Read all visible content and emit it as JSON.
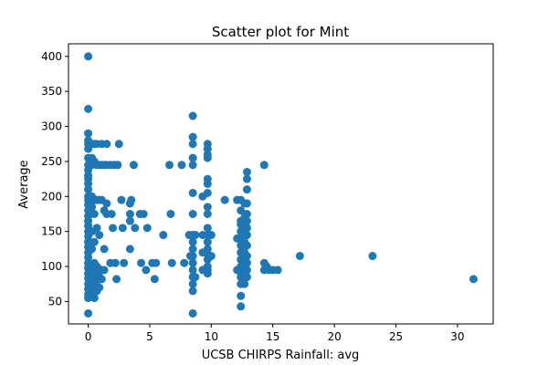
{
  "chart_data": {
    "type": "scatter",
    "title": "Scatter plot for Mint",
    "xlabel": "UCSB CHIRPS Rainfall: avg",
    "ylabel": "Average",
    "xlim": [
      -1.6,
      32.9
    ],
    "ylim": [
      18,
      418
    ],
    "xticks": [
      0,
      5,
      10,
      15,
      20,
      25,
      30
    ],
    "yticks": [
      50,
      100,
      150,
      200,
      250,
      300,
      350,
      400
    ],
    "grid": false,
    "marker_color": "#1f77b4",
    "series": [
      {
        "points": [
          [
            0,
            400
          ],
          [
            0,
            325
          ],
          [
            0,
            290
          ],
          [
            0,
            280
          ],
          [
            0,
            275
          ],
          [
            0,
            268
          ],
          [
            0,
            255
          ],
          [
            0,
            245
          ],
          [
            0,
            238
          ],
          [
            0,
            230
          ],
          [
            0,
            225
          ],
          [
            0,
            218
          ],
          [
            0,
            210
          ],
          [
            0,
            200
          ],
          [
            0,
            195
          ],
          [
            0,
            188
          ],
          [
            0,
            180
          ],
          [
            0,
            172
          ],
          [
            0,
            165
          ],
          [
            0,
            158
          ],
          [
            0,
            150
          ],
          [
            0,
            143
          ],
          [
            0,
            135
          ],
          [
            0,
            128
          ],
          [
            0,
            120
          ],
          [
            0,
            113
          ],
          [
            0,
            105
          ],
          [
            0,
            98
          ],
          [
            0,
            90
          ],
          [
            0,
            83
          ],
          [
            0,
            75
          ],
          [
            0,
            68
          ],
          [
            0,
            60
          ],
          [
            0,
            55
          ],
          [
            0,
            33
          ],
          [
            0.3,
            275
          ],
          [
            0.3,
            255
          ],
          [
            0.3,
            245
          ],
          [
            0.3,
            200
          ],
          [
            0.3,
            185
          ],
          [
            0.3,
            150
          ],
          [
            0.3,
            125
          ],
          [
            0.3,
            100
          ],
          [
            0.3,
            90
          ],
          [
            0.3,
            80
          ],
          [
            0.3,
            70
          ],
          [
            0.3,
            60
          ],
          [
            0.5,
            275
          ],
          [
            0.5,
            250
          ],
          [
            0.5,
            195
          ],
          [
            0.5,
            175
          ],
          [
            0.5,
            135
          ],
          [
            0.5,
            105
          ],
          [
            0.5,
            95
          ],
          [
            0.5,
            85
          ],
          [
            0.5,
            75
          ],
          [
            0.5,
            65
          ],
          [
            0.5,
            55
          ],
          [
            0.7,
            275
          ],
          [
            0.7,
            245
          ],
          [
            0.7,
            195
          ],
          [
            0.7,
            155
          ],
          [
            0.7,
            100
          ],
          [
            0.7,
            90
          ],
          [
            0.7,
            80
          ],
          [
            0.7,
            65
          ],
          [
            0.9,
            245
          ],
          [
            0.9,
            195
          ],
          [
            0.9,
            145
          ],
          [
            0.9,
            95
          ],
          [
            0.9,
            85
          ],
          [
            0.9,
            70
          ],
          [
            1.1,
            275
          ],
          [
            1.1,
            245
          ],
          [
            1.1,
            195
          ],
          [
            1.1,
            95
          ],
          [
            1.1,
            82
          ],
          [
            1.3,
            245
          ],
          [
            1.3,
            180
          ],
          [
            1.3,
            125
          ],
          [
            1.3,
            95
          ],
          [
            1.5,
            275
          ],
          [
            1.5,
            245
          ],
          [
            1.5,
            190
          ],
          [
            1.5,
            175
          ],
          [
            1.8,
            245
          ],
          [
            1.8,
            105
          ],
          [
            1.9,
            175
          ],
          [
            2.0,
            155
          ],
          [
            2.1,
            245
          ],
          [
            2.2,
            105
          ],
          [
            2.3,
            82
          ],
          [
            2.4,
            245
          ],
          [
            2.5,
            275
          ],
          [
            2.7,
            195
          ],
          [
            2.8,
            155
          ],
          [
            2.9,
            105
          ],
          [
            3.4,
            190
          ],
          [
            3.4,
            175
          ],
          [
            3.4,
            165
          ],
          [
            3.4,
            125
          ],
          [
            3.5,
            195
          ],
          [
            3.7,
            245
          ],
          [
            3.8,
            155
          ],
          [
            4.2,
            175
          ],
          [
            4.3,
            105
          ],
          [
            4.5,
            175
          ],
          [
            4.7,
            95
          ],
          [
            4.8,
            155
          ],
          [
            5.2,
            105
          ],
          [
            5.4,
            82
          ],
          [
            5.5,
            105
          ],
          [
            6.1,
            145
          ],
          [
            6.6,
            245
          ],
          [
            6.7,
            175
          ],
          [
            6.8,
            105
          ],
          [
            7.6,
            245
          ],
          [
            7.8,
            105
          ],
          [
            8.5,
            315
          ],
          [
            8.5,
            285
          ],
          [
            8.5,
            275
          ],
          [
            8.5,
            255
          ],
          [
            8.5,
            245
          ],
          [
            8.5,
            205
          ],
          [
            8.5,
            175
          ],
          [
            8.5,
            145
          ],
          [
            8.5,
            135
          ],
          [
            8.5,
            125
          ],
          [
            8.5,
            115
          ],
          [
            8.5,
            105
          ],
          [
            8.5,
            95
          ],
          [
            8.5,
            85
          ],
          [
            8.5,
            75
          ],
          [
            8.5,
            65
          ],
          [
            8.5,
            33
          ],
          [
            8.2,
            145
          ],
          [
            8.3,
            115
          ],
          [
            8.7,
            145
          ],
          [
            8.7,
            85
          ],
          [
            9.3,
            200
          ],
          [
            9.3,
            145
          ],
          [
            9.3,
            120
          ],
          [
            9.3,
            95
          ],
          [
            9.7,
            275
          ],
          [
            9.7,
            268
          ],
          [
            9.7,
            260
          ],
          [
            9.7,
            255
          ],
          [
            9.7,
            225
          ],
          [
            9.7,
            218
          ],
          [
            9.7,
            205
          ],
          [
            9.7,
            185
          ],
          [
            9.7,
            175
          ],
          [
            9.7,
            155
          ],
          [
            9.7,
            145
          ],
          [
            9.7,
            135
          ],
          [
            9.7,
            125
          ],
          [
            9.7,
            118
          ],
          [
            9.7,
            110
          ],
          [
            9.7,
            100
          ],
          [
            9.7,
            95
          ],
          [
            9.7,
            90
          ],
          [
            10.0,
            145
          ],
          [
            10.0,
            115
          ],
          [
            11.1,
            195
          ],
          [
            12.1,
            195
          ],
          [
            12.1,
            140
          ],
          [
            12.1,
            95
          ],
          [
            12.4,
            195
          ],
          [
            12.4,
            180
          ],
          [
            12.4,
            165
          ],
          [
            12.4,
            160
          ],
          [
            12.4,
            150
          ],
          [
            12.4,
            140
          ],
          [
            12.4,
            130
          ],
          [
            12.4,
            120
          ],
          [
            12.4,
            110
          ],
          [
            12.4,
            100
          ],
          [
            12.4,
            92
          ],
          [
            12.4,
            85
          ],
          [
            12.4,
            75
          ],
          [
            12.4,
            58
          ],
          [
            12.4,
            43
          ],
          [
            12.7,
            190
          ],
          [
            12.7,
            170
          ],
          [
            12.7,
            155
          ],
          [
            12.7,
            145
          ],
          [
            12.7,
            135
          ],
          [
            12.7,
            120
          ],
          [
            12.7,
            105
          ],
          [
            12.7,
            95
          ],
          [
            12.7,
            85
          ],
          [
            12.7,
            75
          ],
          [
            12.9,
            235
          ],
          [
            12.9,
            225
          ],
          [
            12.9,
            210
          ],
          [
            12.9,
            190
          ],
          [
            12.9,
            175
          ],
          [
            12.9,
            165
          ],
          [
            12.9,
            155
          ],
          [
            12.9,
            145
          ],
          [
            12.9,
            130
          ],
          [
            12.9,
            115
          ],
          [
            12.9,
            105
          ],
          [
            12.9,
            95
          ],
          [
            12.9,
            85
          ],
          [
            14.3,
            245
          ],
          [
            14.3,
            105
          ],
          [
            14.3,
            95
          ],
          [
            14.5,
            100
          ],
          [
            14.7,
            95
          ],
          [
            15.0,
            95
          ],
          [
            15.4,
            95
          ],
          [
            17.2,
            115
          ],
          [
            23.1,
            115
          ],
          [
            31.3,
            82
          ]
        ]
      }
    ]
  }
}
